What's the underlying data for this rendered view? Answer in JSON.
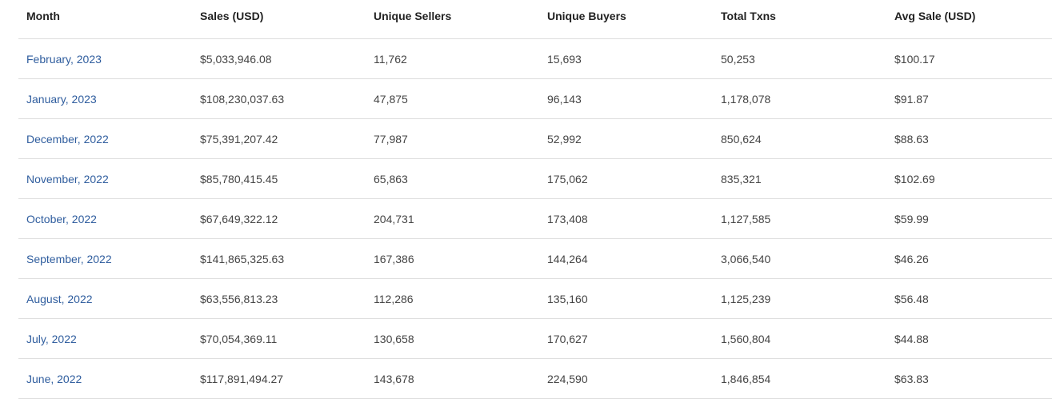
{
  "table": {
    "headers": [
      "Month",
      "Sales (USD)",
      "Unique Sellers",
      "Unique Buyers",
      "Total Txns",
      "Avg Sale (USD)"
    ],
    "rows": [
      [
        "February, 2023",
        "$5,033,946.08",
        "11,762",
        "15,693",
        "50,253",
        "$100.17"
      ],
      [
        "January, 2023",
        "$108,230,037.63",
        "47,875",
        "96,143",
        "1,178,078",
        "$91.87"
      ],
      [
        "December, 2022",
        "$75,391,207.42",
        "77,987",
        "52,992",
        "850,624",
        "$88.63"
      ],
      [
        "November, 2022",
        "$85,780,415.45",
        "65,863",
        "175,062",
        "835,321",
        "$102.69"
      ],
      [
        "October, 2022",
        "$67,649,322.12",
        "204,731",
        "173,408",
        "1,127,585",
        "$59.99"
      ],
      [
        "September, 2022",
        "$141,865,325.63",
        "167,386",
        "144,264",
        "3,066,540",
        "$46.26"
      ],
      [
        "August, 2022",
        "$63,556,813.23",
        "112,286",
        "135,160",
        "1,125,239",
        "$56.48"
      ],
      [
        "July, 2022",
        "$70,054,369.11",
        "130,658",
        "170,627",
        "1,560,804",
        "$44.88"
      ],
      [
        "June, 2022",
        "$117,891,494.27",
        "143,678",
        "224,590",
        "1,846,854",
        "$63.83"
      ]
    ]
  },
  "colors": {
    "link": "#2f5d9e",
    "text": "#444444",
    "header_text": "#222222",
    "divider": "#dddddd"
  }
}
